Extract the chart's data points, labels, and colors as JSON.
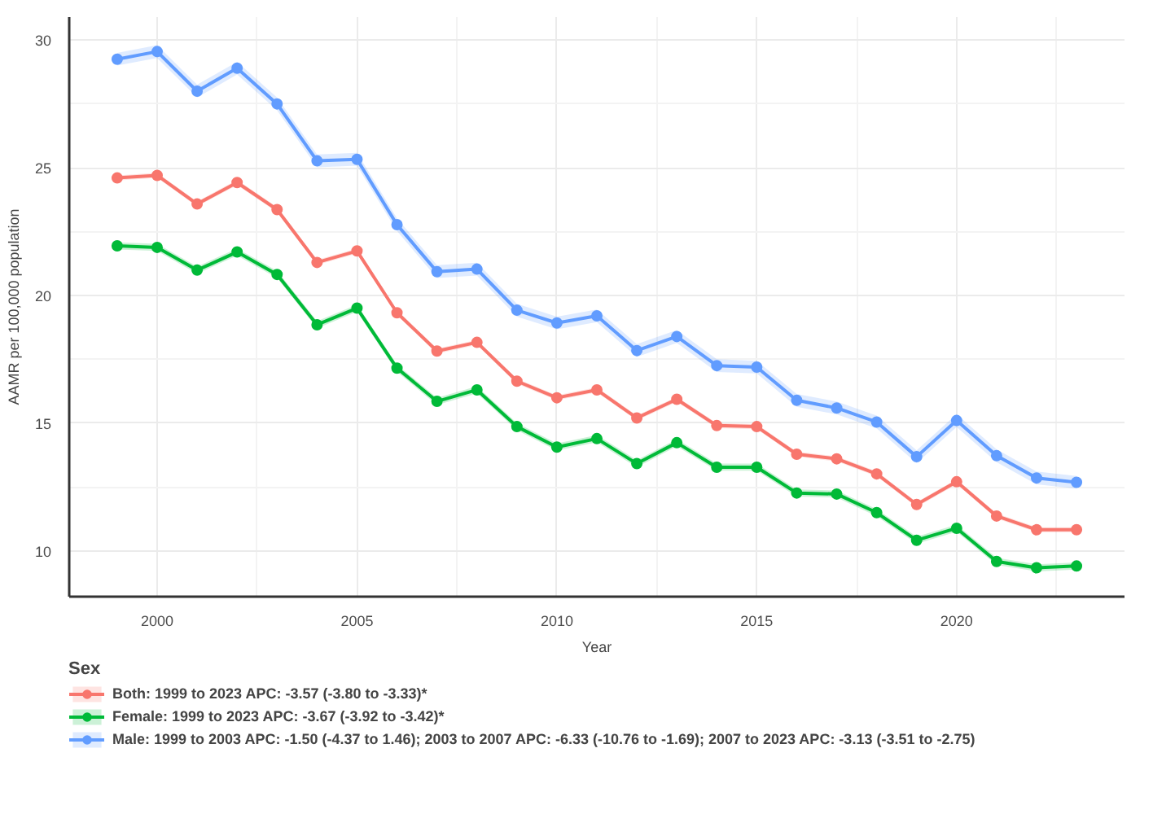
{
  "chart_data": {
    "type": "line",
    "xlabel": "Year",
    "ylabel": "AAMR per 100,000 population",
    "legend_title": "Sex",
    "x": [
      1999,
      2000,
      2001,
      2002,
      2003,
      2004,
      2005,
      2006,
      2007,
      2008,
      2009,
      2010,
      2011,
      2012,
      2013,
      2014,
      2015,
      2016,
      2017,
      2018,
      2019,
      2020,
      2021,
      2022,
      2023
    ],
    "series": [
      {
        "name": "Both: 1999 to 2023 APC: -3.57 (-3.80 to -3.33)*",
        "color": "#f8766d",
        "values": [
          24.6,
          24.7,
          23.58,
          24.42,
          23.36,
          21.29,
          21.74,
          19.32,
          17.82,
          18.16,
          16.64,
          15.99,
          16.3,
          15.2,
          15.93,
          14.9,
          14.86,
          13.78,
          13.6,
          13.01,
          11.81,
          12.7,
          11.36,
          10.82,
          10.82
        ],
        "lower": [
          24.5,
          24.6,
          23.48,
          24.32,
          23.26,
          21.19,
          21.64,
          19.22,
          17.72,
          18.06,
          16.54,
          15.89,
          16.2,
          15.1,
          15.83,
          14.8,
          14.76,
          13.68,
          13.5,
          12.91,
          11.71,
          12.6,
          11.26,
          10.72,
          10.72
        ],
        "upper": [
          24.7,
          24.8,
          23.68,
          24.52,
          23.46,
          21.39,
          21.84,
          19.42,
          17.92,
          18.26,
          16.74,
          16.09,
          16.4,
          15.3,
          16.03,
          15.0,
          14.96,
          13.88,
          13.7,
          13.11,
          11.91,
          12.8,
          11.46,
          10.92,
          10.92
        ]
      },
      {
        "name": "Female: 1999 to 2023 APC: -3.67 (-3.92 to -3.42)*",
        "color": "#00ba38",
        "values": [
          21.94,
          21.88,
          20.99,
          21.7,
          20.82,
          18.85,
          19.5,
          17.15,
          15.85,
          16.3,
          14.86,
          14.06,
          14.39,
          13.41,
          14.23,
          13.27,
          13.27,
          12.26,
          12.22,
          11.49,
          10.41,
          10.88,
          9.58,
          9.33,
          9.4
        ],
        "lower": [
          21.8,
          21.74,
          20.85,
          21.56,
          20.68,
          18.71,
          19.36,
          17.01,
          15.71,
          16.16,
          14.72,
          13.92,
          14.25,
          13.27,
          14.09,
          13.13,
          13.13,
          12.12,
          12.08,
          11.35,
          10.27,
          10.74,
          9.44,
          9.19,
          9.26
        ],
        "upper": [
          22.08,
          22.02,
          21.13,
          21.84,
          20.96,
          18.99,
          19.64,
          17.29,
          15.99,
          16.44,
          15.0,
          14.2,
          14.53,
          13.55,
          14.37,
          13.41,
          13.41,
          12.4,
          12.36,
          11.63,
          10.55,
          11.02,
          9.72,
          9.47,
          9.54
        ]
      },
      {
        "name": "Male: 1999 to 2003 APC: -1.50 (-4.37 to 1.46); 2003 to 2007 APC: -6.33 (-10.76 to -1.69); 2007 to 2023 APC: -3.13 (-3.51 to -2.75)",
        "color": "#619cff",
        "values": [
          29.25,
          29.55,
          28.0,
          28.9,
          27.5,
          25.27,
          25.33,
          22.77,
          20.93,
          21.03,
          19.42,
          18.92,
          19.2,
          17.84,
          18.39,
          17.25,
          17.19,
          15.89,
          15.59,
          15.04,
          13.68,
          15.1,
          13.72,
          12.85,
          12.68
        ],
        "lower": [
          29.0,
          29.3,
          27.75,
          28.65,
          27.25,
          25.02,
          25.08,
          22.52,
          20.68,
          20.78,
          19.17,
          18.67,
          18.95,
          17.59,
          18.14,
          17.0,
          16.94,
          15.64,
          15.34,
          14.79,
          13.43,
          14.85,
          13.47,
          12.6,
          12.43
        ],
        "upper": [
          29.5,
          29.8,
          28.25,
          29.15,
          27.75,
          25.52,
          25.58,
          23.02,
          21.18,
          21.28,
          19.67,
          19.17,
          19.45,
          18.09,
          18.64,
          17.5,
          17.44,
          16.14,
          15.84,
          15.29,
          13.93,
          15.35,
          13.97,
          13.1,
          12.93
        ]
      }
    ],
    "xlim": [
      1997.8,
      2024.2
    ],
    "ylim": [
      8.2,
      30.9
    ],
    "xticks": [
      2000,
      2005,
      2010,
      2015,
      2020
    ],
    "yticks": [
      10,
      15,
      20,
      25,
      30
    ],
    "grid": true,
    "legend": "bottom",
    "marker": "circle",
    "line_style": "solid"
  }
}
